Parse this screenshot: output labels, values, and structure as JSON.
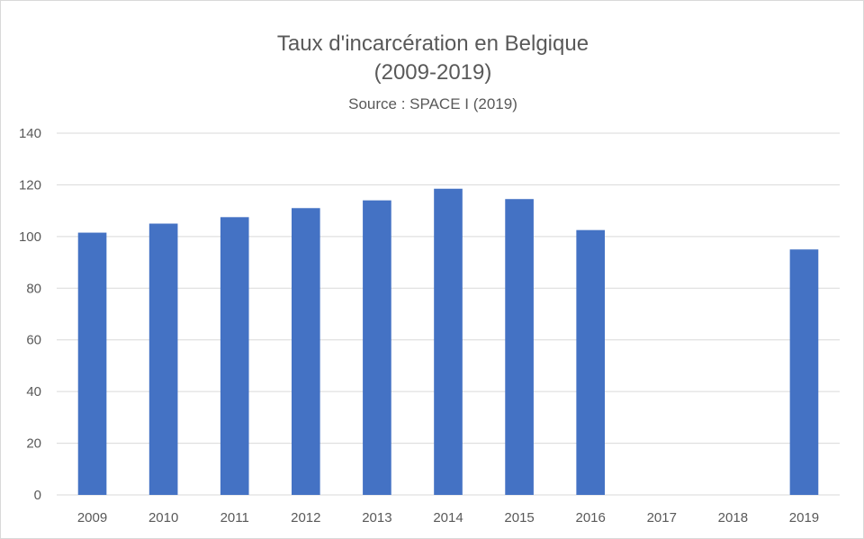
{
  "chart_data": {
    "type": "bar",
    "title": "Taux d'incarcération  en Belgique",
    "title_line2": "(2009-2019)",
    "subtitle": "Source : SPACE I (2019)",
    "xlabel": "",
    "ylabel": "",
    "categories": [
      "2009",
      "2010",
      "2011",
      "2012",
      "2013",
      "2014",
      "2015",
      "2016",
      "2017",
      "2018",
      "2019"
    ],
    "values": [
      101.5,
      105,
      107.5,
      111,
      114,
      118.5,
      114.5,
      102.5,
      null,
      null,
      95
    ],
    "ylim": [
      0,
      140
    ],
    "yticks": [
      0,
      20,
      40,
      60,
      80,
      100,
      120,
      140
    ],
    "grid": true,
    "legend": "none",
    "bar_color": "#4472c4",
    "grid_color": "#d9d9d9"
  }
}
